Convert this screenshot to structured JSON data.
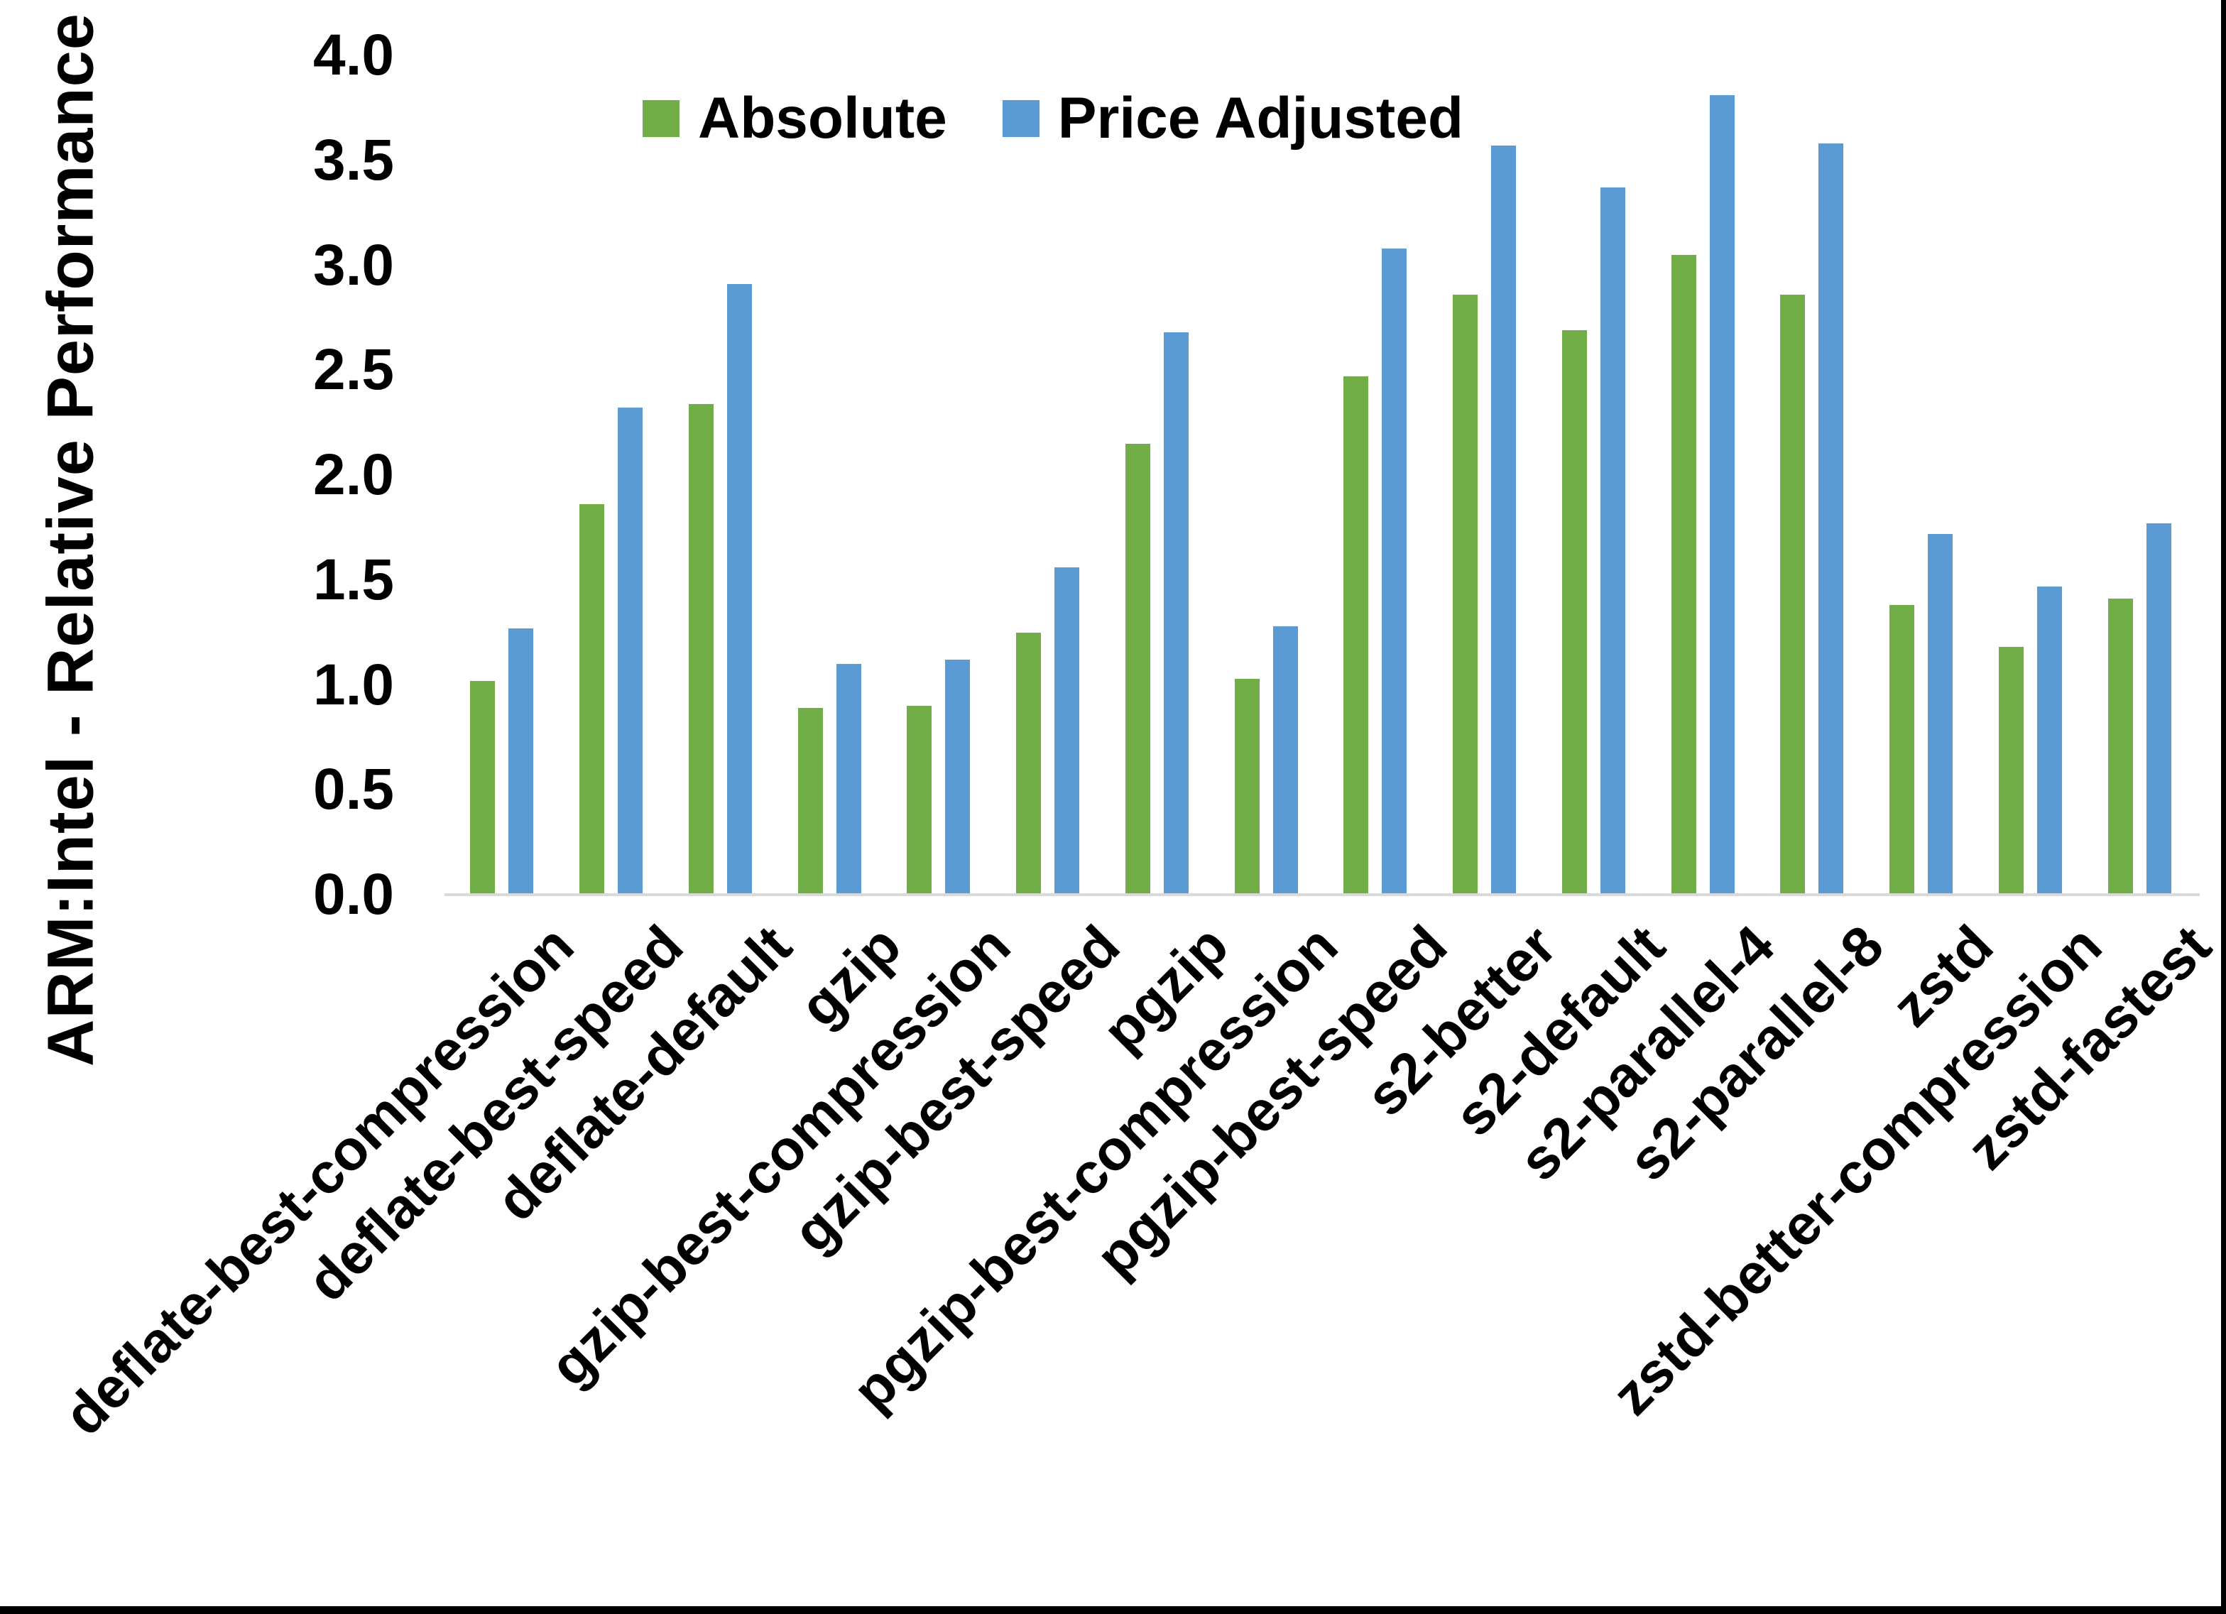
{
  "chart_data": {
    "type": "bar",
    "title": "",
    "ylabel": "ARM:Intel - Relative Performance",
    "xlabel": "",
    "ylim": [
      0,
      4.0
    ],
    "ytick_step": 0.5,
    "grid": false,
    "legend_position": "top-inside",
    "categories": [
      "deflate-best-compression",
      "deflate-best-speed",
      "deflate-default",
      "gzip",
      "gzip-best-compression",
      "gzip-best-speed",
      "pgzip",
      "pgzip-best-compression",
      "pgzip-best-speed",
      "s2-better",
      "s2-default",
      "s2-parallel-4",
      "s2-parallel-8",
      "zstd",
      "zstd-better-compression",
      "zstd-fastest"
    ],
    "series": [
      {
        "name": "Absolute",
        "color": "#70AD47",
        "values": [
          1.02,
          1.86,
          2.34,
          0.89,
          0.9,
          1.25,
          2.15,
          1.03,
          2.47,
          2.86,
          2.69,
          3.05,
          2.86,
          1.38,
          1.18,
          1.41
        ]
      },
      {
        "name": "Price Adjusted",
        "color": "#5B9BD5",
        "values": [
          1.27,
          2.32,
          2.91,
          1.1,
          1.12,
          1.56,
          2.68,
          1.28,
          3.08,
          3.57,
          3.37,
          3.81,
          3.58,
          1.72,
          1.47,
          1.77
        ]
      }
    ]
  },
  "colors": {
    "background": "#FFFFFF",
    "axis_line": "#D9D9D9",
    "text": "#000000",
    "border": "#000000"
  }
}
